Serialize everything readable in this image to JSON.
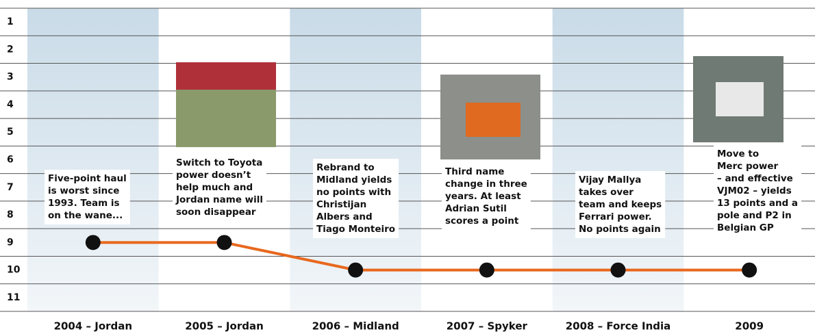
{
  "chart_data": {
    "type": "line",
    "categories": [
      "2004 – Jordan",
      "2005 – Jordan",
      "2006 – Midland",
      "2007 – Spyker",
      "2008 – Force India",
      "2009"
    ],
    "values": [
      9,
      9,
      10,
      10,
      10,
      10
    ],
    "color": "#e8681e",
    "ylim": [
      0.5,
      11.5
    ],
    "yticks": [
      1,
      2,
      3,
      4,
      5,
      6,
      7,
      8,
      9,
      10,
      11
    ],
    "y_inverted": true,
    "annotations": [
      [
        "Five-point haul",
        "is worst since",
        "1993. Team is",
        "on the wane..."
      ],
      [
        "Switch to Toyota",
        "power doesn’t",
        "help much and",
        "Jordan name will",
        "soon disappear"
      ],
      [
        "Rebrand to",
        "Midland yields",
        "no points with",
        "Christijan",
        "Albers and",
        "Tiago Monteiro"
      ],
      [
        "Third name",
        "change in three",
        "years. At least",
        "Adrian Sutil",
        "scores a point"
      ],
      [
        "Vijay Mallya",
        "takes over",
        "team and keeps",
        "Ferrari power.",
        "No points again"
      ],
      [
        "Move to",
        "Merc power",
        "– and effective",
        "VJM02 – yields",
        "13 points and a",
        "pole and P2 in",
        "Belgian GP"
      ]
    ]
  }
}
